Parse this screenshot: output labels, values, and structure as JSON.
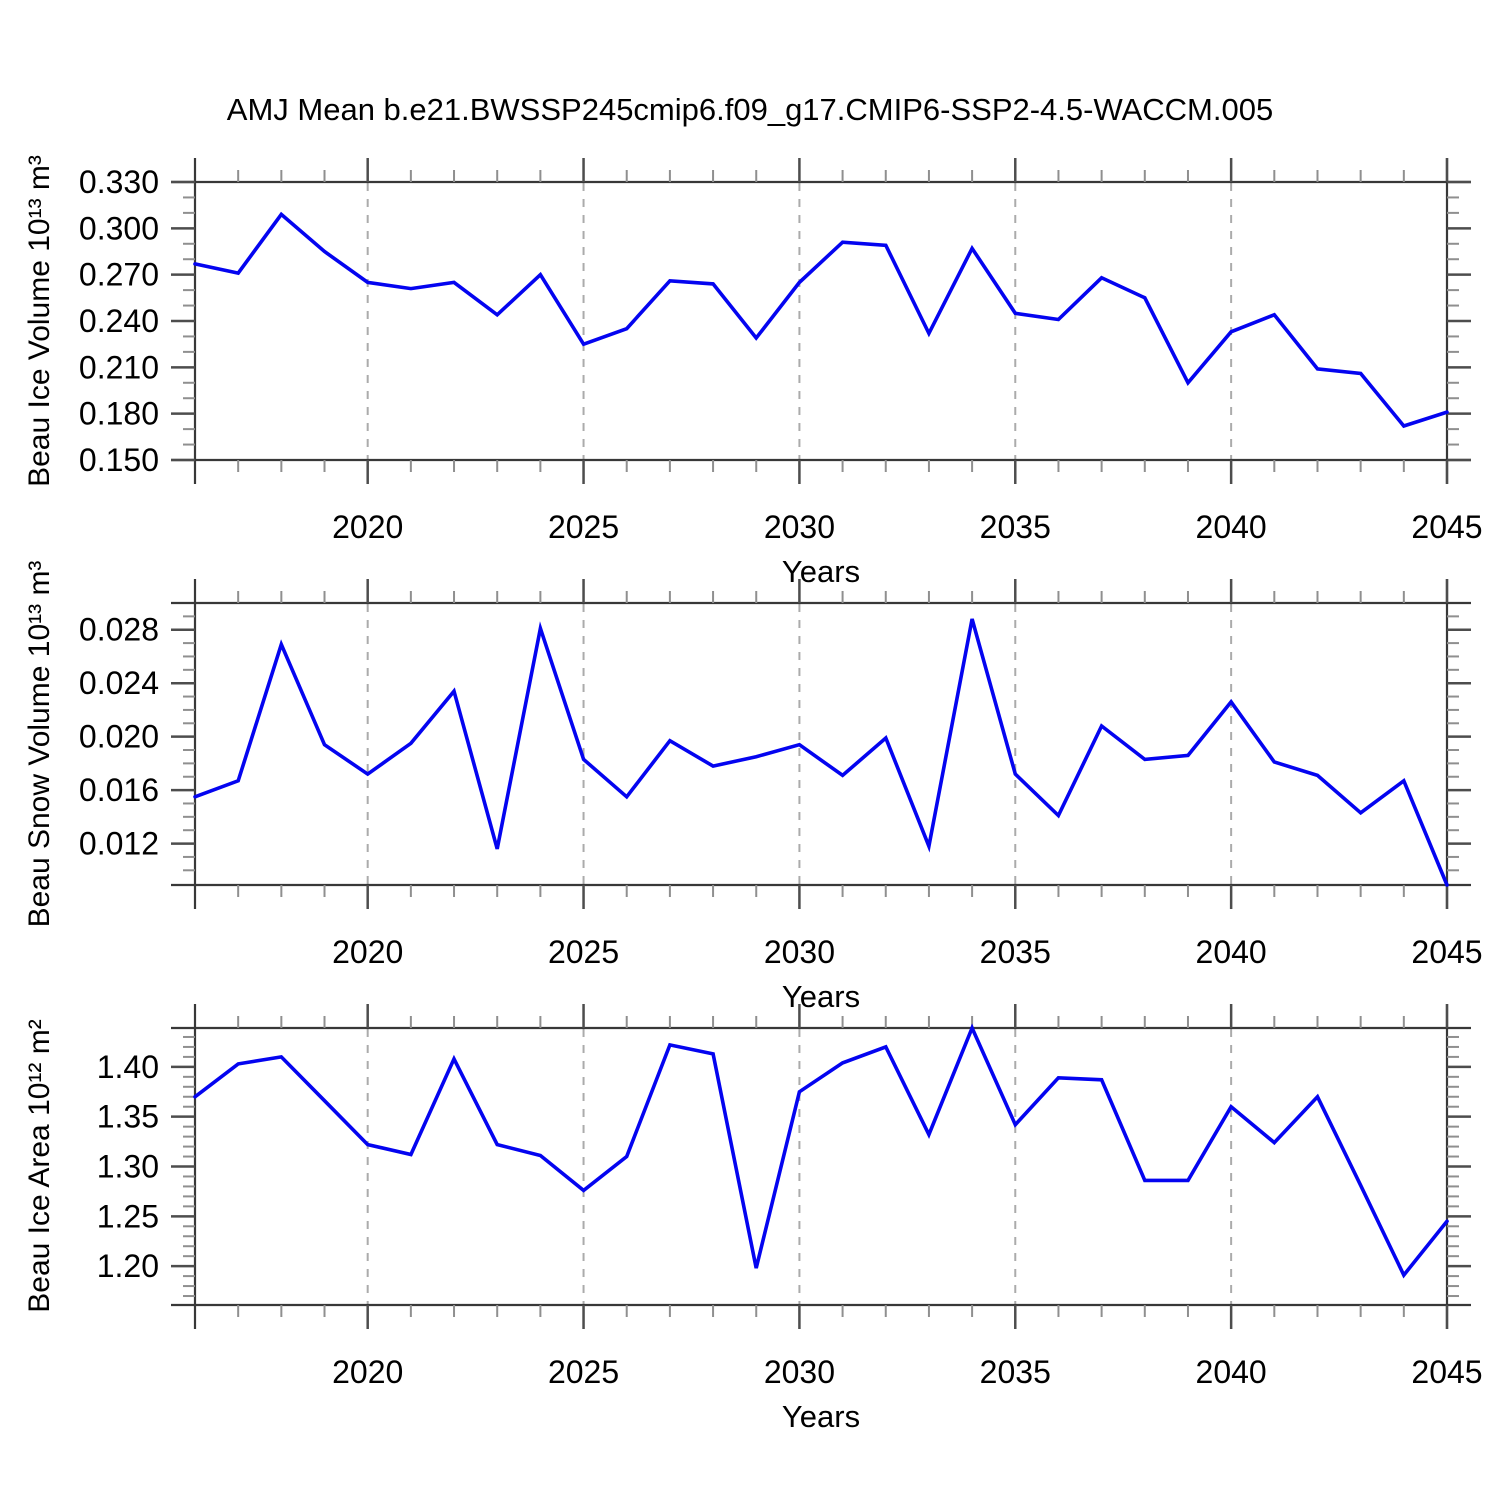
{
  "title": "AMJ Mean b.e21.BWSSP245cmip6.f09_g17.CMIP6-SSP2-4.5-WACCM.005",
  "colors": {
    "line": "#0404F0",
    "grid_dash": "#ababab",
    "axis": "#383838",
    "tick_major": "#4d4d4d",
    "tick_minor": "#8f8f8f",
    "text": "#000000",
    "background": "#ffffff"
  },
  "chart_data": [
    {
      "id": "beau-ice-volume",
      "type": "line",
      "title": "",
      "ylabel": "Beau Ice Volume 10¹³ m³",
      "xlabel": "Years",
      "x": [
        2016,
        2017,
        2018,
        2019,
        2020,
        2021,
        2022,
        2023,
        2024,
        2025,
        2026,
        2027,
        2028,
        2029,
        2030,
        2031,
        2032,
        2033,
        2034,
        2035,
        2036,
        2037,
        2038,
        2039,
        2040,
        2041,
        2042,
        2043,
        2044,
        2045
      ],
      "values": [
        0.277,
        0.271,
        0.309,
        0.285,
        0.265,
        0.261,
        0.265,
        0.244,
        0.27,
        0.225,
        0.235,
        0.266,
        0.264,
        0.229,
        0.265,
        0.291,
        0.289,
        0.232,
        0.287,
        0.245,
        0.241,
        0.268,
        0.255,
        0.2,
        0.233,
        0.244,
        0.209,
        0.206,
        0.172,
        0.181
      ],
      "xlim": [
        2016,
        2045
      ],
      "ylim": [
        0.15,
        0.33
      ],
      "xtick_values": [
        2020,
        2025,
        2030,
        2035,
        2040,
        2045
      ],
      "xtick_labels": [
        "2020",
        "2025",
        "2030",
        "2035",
        "2040",
        "2045"
      ],
      "x_minor_step": 1,
      "ytick_values": [
        0.15,
        0.18,
        0.21,
        0.24,
        0.27,
        0.3,
        0.33
      ],
      "ytick_labels": [
        "0.150",
        "0.180",
        "0.210",
        "0.240",
        "0.270",
        "0.300",
        "0.330"
      ],
      "y_minor_step": 0.01,
      "gridlines_x": [
        2020,
        2025,
        2030,
        2035,
        2040
      ],
      "grid": "vertical-dashed-at-major-x",
      "legend": null
    },
    {
      "id": "beau-snow-volume",
      "type": "line",
      "title": "",
      "ylabel": "Beau Snow Volume 10¹³ m³",
      "xlabel": "Years",
      "x": [
        2016,
        2017,
        2018,
        2019,
        2020,
        2021,
        2022,
        2023,
        2024,
        2025,
        2026,
        2027,
        2028,
        2029,
        2030,
        2031,
        2032,
        2033,
        2034,
        2035,
        2036,
        2037,
        2038,
        2039,
        2040,
        2041,
        2042,
        2043,
        2044,
        2045
      ],
      "values": [
        0.0155,
        0.0167,
        0.0269,
        0.0194,
        0.0172,
        0.0195,
        0.0234,
        0.0116,
        0.0281,
        0.0183,
        0.0155,
        0.0197,
        0.0178,
        0.0185,
        0.0194,
        0.0171,
        0.0199,
        0.0118,
        0.0288,
        0.0172,
        0.0141,
        0.0208,
        0.0183,
        0.0186,
        0.0226,
        0.0181,
        0.0171,
        0.0143,
        0.0167,
        0.0089
      ],
      "xlim": [
        2016,
        2045
      ],
      "ylim": [
        0.0089,
        0.03
      ],
      "xtick_values": [
        2020,
        2025,
        2030,
        2035,
        2040,
        2045
      ],
      "xtick_labels": [
        "2020",
        "2025",
        "2030",
        "2035",
        "2040",
        "2045"
      ],
      "x_minor_step": 1,
      "ytick_values": [
        0.012,
        0.016,
        0.02,
        0.024,
        0.028
      ],
      "ytick_labels": [
        "0.012",
        "0.016",
        "0.020",
        "0.024",
        "0.028"
      ],
      "y_minor_step": 0.001,
      "gridlines_x": [
        2020,
        2025,
        2030,
        2035,
        2040
      ],
      "grid": "vertical-dashed-at-major-x",
      "legend": null
    },
    {
      "id": "beau-ice-area",
      "type": "line",
      "title": "",
      "ylabel": "Beau Ice Area 10¹² m²",
      "xlabel": "Years",
      "x": [
        2016,
        2017,
        2018,
        2019,
        2020,
        2021,
        2022,
        2023,
        2024,
        2025,
        2026,
        2027,
        2028,
        2029,
        2030,
        2031,
        2032,
        2033,
        2034,
        2035,
        2036,
        2037,
        2038,
        2039,
        2040,
        2041,
        2042,
        2043,
        2044,
        2045
      ],
      "values": [
        1.37,
        1.403,
        1.41,
        1.366,
        1.322,
        1.312,
        1.408,
        1.322,
        1.311,
        1.276,
        1.31,
        1.422,
        1.413,
        1.198,
        1.375,
        1.404,
        1.42,
        1.332,
        1.439,
        1.342,
        1.389,
        1.387,
        1.286,
        1.286,
        1.36,
        1.324,
        1.37,
        1.281,
        1.191,
        1.245
      ],
      "xlim": [
        2016,
        2045
      ],
      "ylim": [
        1.161,
        1.439
      ],
      "xtick_values": [
        2020,
        2025,
        2030,
        2035,
        2040,
        2045
      ],
      "xtick_labels": [
        "2020",
        "2025",
        "2030",
        "2035",
        "2040",
        "2045"
      ],
      "x_minor_step": 1,
      "ytick_values": [
        1.2,
        1.25,
        1.3,
        1.35,
        1.4
      ],
      "ytick_labels": [
        "1.20",
        "1.25",
        "1.30",
        "1.35",
        "1.40"
      ],
      "y_minor_step": 0.01,
      "gridlines_x": [
        2020,
        2025,
        2030,
        2035,
        2040
      ],
      "grid": "vertical-dashed-at-major-x",
      "legend": null
    }
  ]
}
